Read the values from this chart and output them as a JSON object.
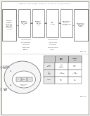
{
  "bg_color": "#f0f0eb",
  "page_color": "#ffffff",
  "header_text": "Patent Application Publication   May 28, 2015   Sheet 9 of 10   US 2013/0116489 A1",
  "top_fig_label": "FIG. 13",
  "bot_fig_label": "FIG. 12",
  "top_boxes": [
    "Fluorescent\namino acid\n(e.g. Anap,\nAzF)",
    "Fluorescent\nprotein\n(e.g. GFP,\nYFP)",
    "FRET\npair\n(FAA+FP)",
    "High-sensitive\nfluorescent\nenergy transfer\nassay"
  ],
  "top_left_box": "Method of\nusing\nfluorescent\namino acid\n(FAA) and\nfluorescent\nprotein (FP)\nfor FRET",
  "right_big_box": "High-sensitive\nFRET assay\nusing FAA\nand FP",
  "note1_lines": [
    "Fluorescent amino",
    "acid incorporated",
    "into protein by",
    "genetic code",
    "expansion"
  ],
  "note2_lines": [
    "Fluorescent protein",
    "fused to protein",
    "of interest by",
    "standard molecular",
    "biology"
  ],
  "table_headers": [
    "",
    "Donor\n(FAA)",
    "Acceptor\n(FP)"
  ],
  "table_rows": [
    [
      "Protein\nlabeling",
      "Genetic\ncode\nexpansion",
      "Protein\nfusion"
    ],
    [
      "Fluor-\nophore\nsize",
      "Small\n(~0.3 kDa)",
      "Large\n(~27 kDa)"
    ],
    [
      "Example",
      "Anap,\nAzF",
      "GFP,\nYFP"
    ]
  ],
  "ellipse_outer_labels": [
    "Ion channel\nvoltage sensor\ndomain",
    "Receptor\ntyrosine\nkinase"
  ],
  "inner_box_labels": [
    "FAA",
    "Linker",
    "FP"
  ],
  "inner_label": "FRET biosensor\nconstruct"
}
